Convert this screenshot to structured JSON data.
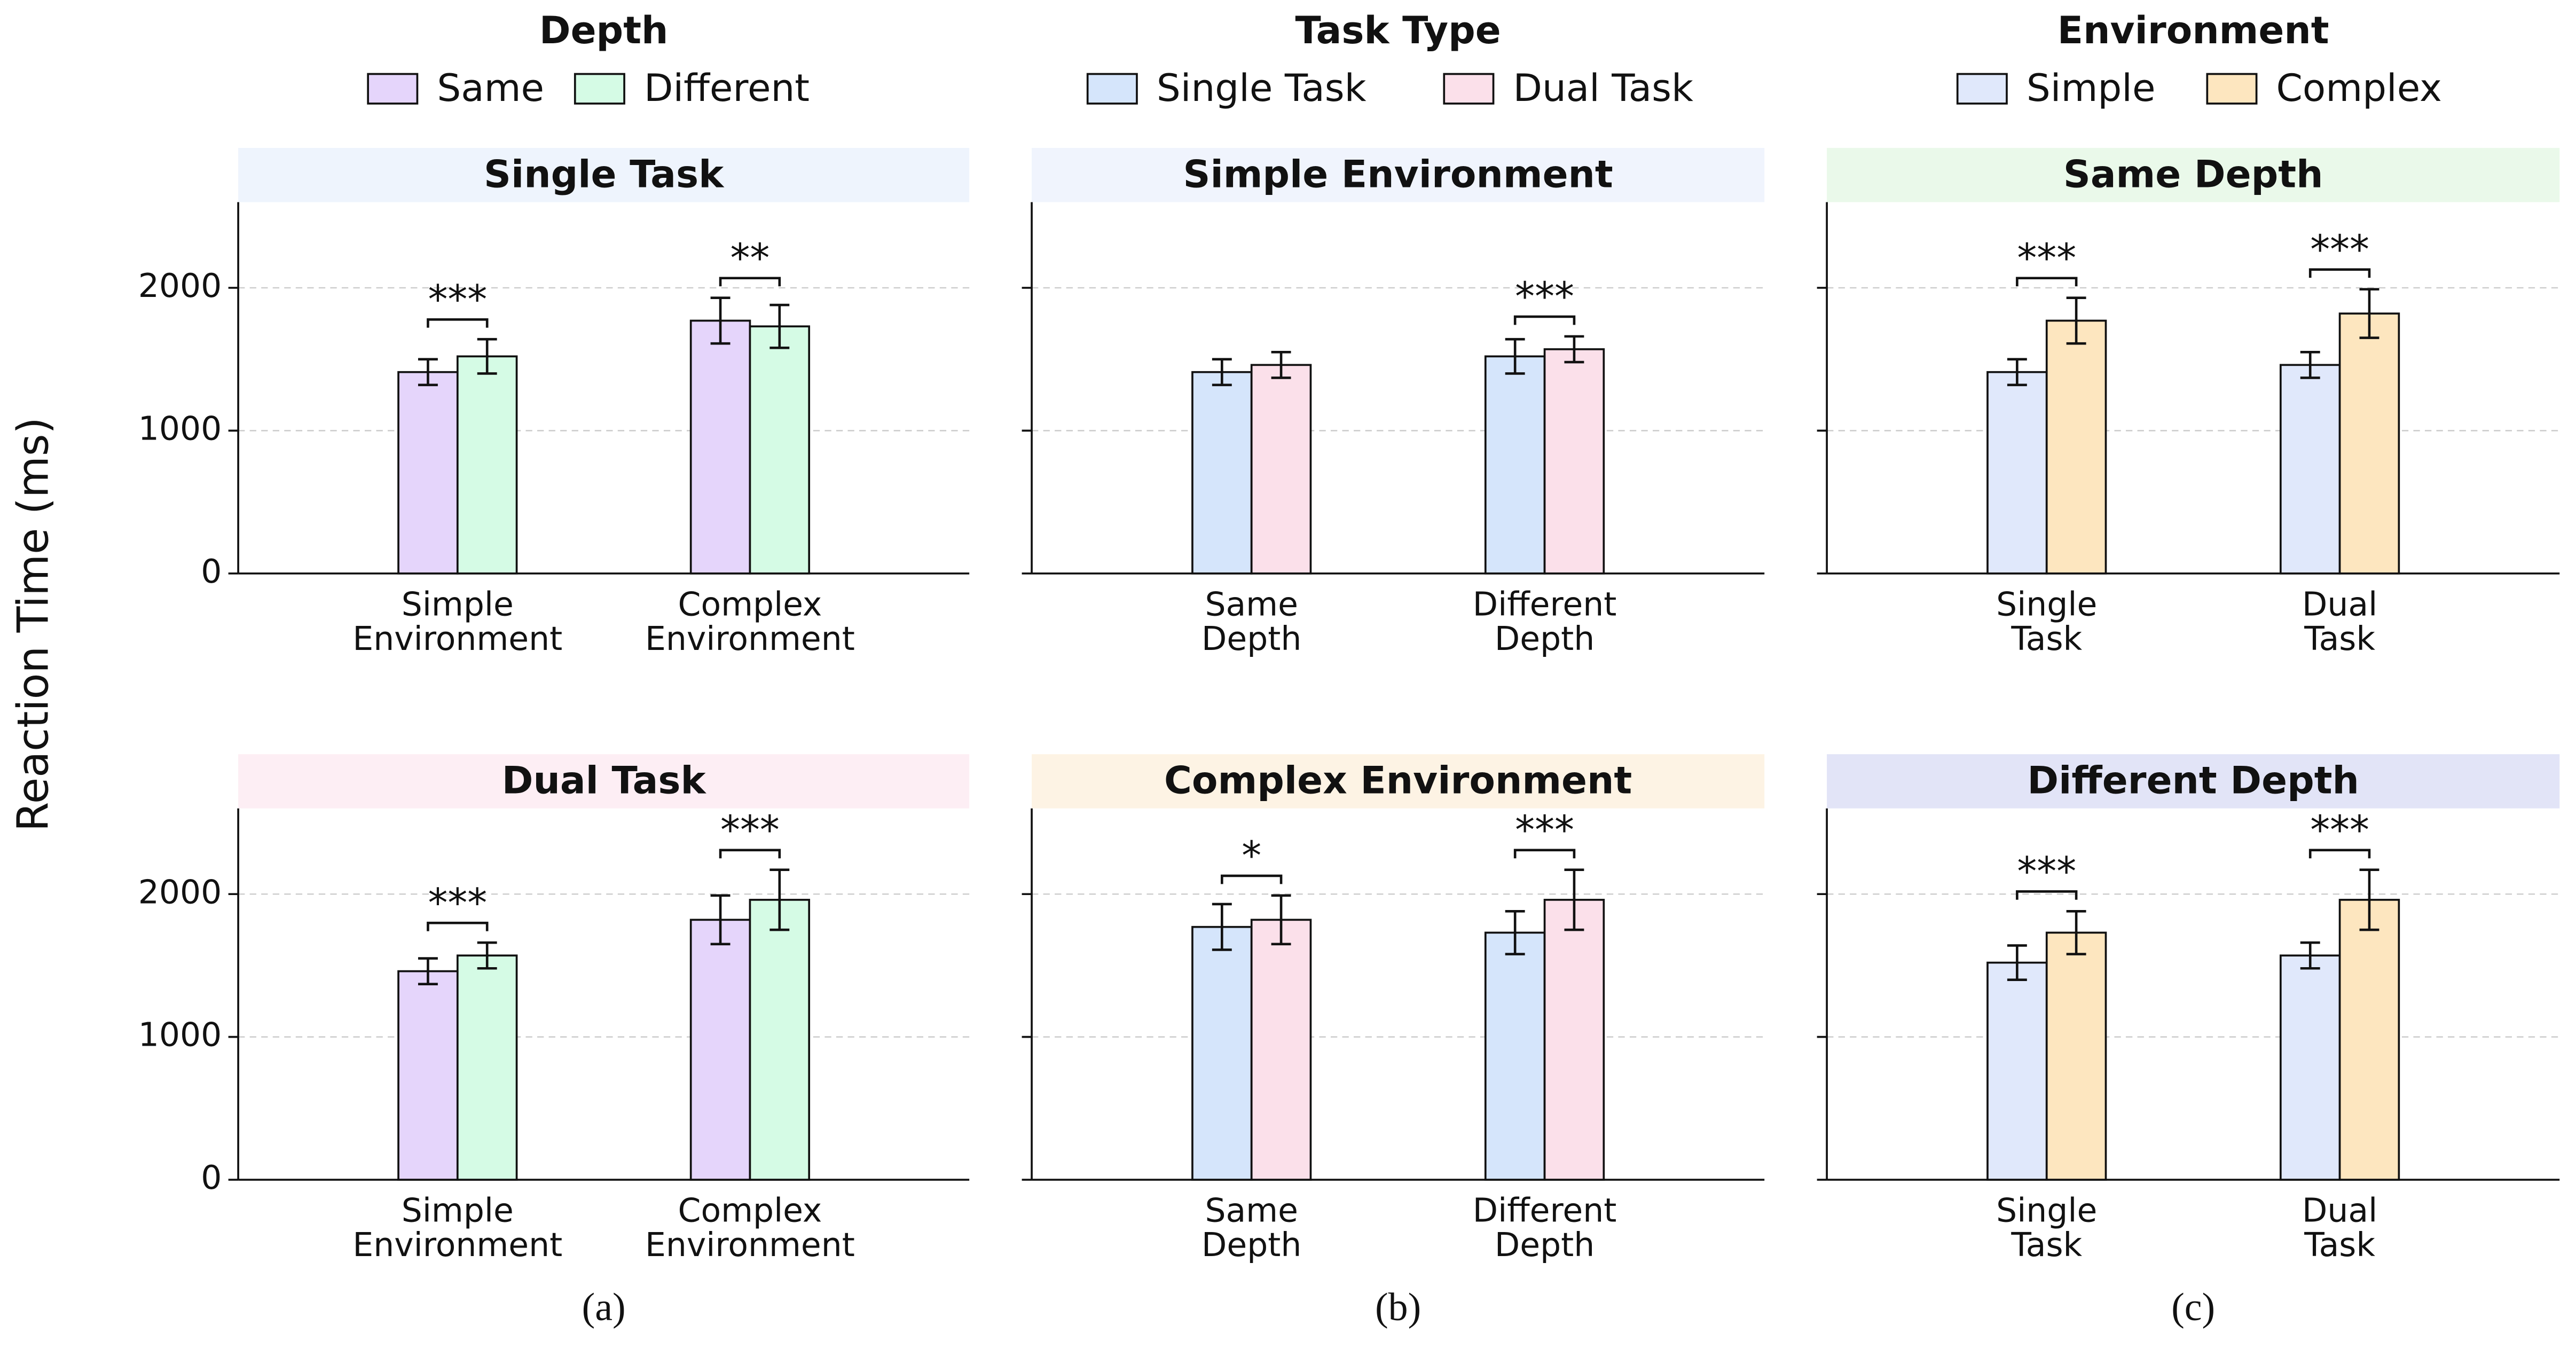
{
  "ylabel": "Reaction Time (ms)",
  "chart_data": [
    {
      "type": "bar",
      "legend_title": "Depth",
      "caption": "(a)",
      "legend": [
        {
          "name": "Same",
          "color": "#e5d5fb"
        },
        {
          "name": "Different",
          "color": "#d5fbe5"
        }
      ],
      "panels": [
        {
          "title": "Single Task",
          "title_color": "#eef4fd",
          "categories": [
            "Simple\nEnvironment",
            "Complex\nEnvironment"
          ],
          "ylim": [
            0,
            2600
          ],
          "yticks": [
            0,
            1000,
            2000
          ],
          "grid": true,
          "series": [
            {
              "values": [
                1410,
                1770
              ],
              "errors": [
                90,
                160
              ]
            },
            {
              "values": [
                1520,
                1730
              ],
              "errors": [
                120,
                150
              ]
            }
          ],
          "significance": [
            "***",
            "**"
          ]
        },
        {
          "title": "Dual Task",
          "title_color": "#fdeef4",
          "categories": [
            "Simple\nEnvironment",
            "Complex\nEnvironment"
          ],
          "ylim": [
            0,
            2600
          ],
          "yticks": [
            0,
            1000,
            2000
          ],
          "grid": true,
          "series": [
            {
              "values": [
                1460,
                1820
              ],
              "errors": [
                90,
                170
              ]
            },
            {
              "values": [
                1570,
                1960
              ],
              "errors": [
                90,
                210
              ]
            }
          ],
          "significance": [
            "***",
            "***"
          ]
        }
      ]
    },
    {
      "type": "bar",
      "legend_title": "Task Type",
      "caption": "(b)",
      "legend": [
        {
          "name": "Single Task",
          "color": "#d5e5fb"
        },
        {
          "name": "Dual Task",
          "color": "#fbe0ea"
        }
      ],
      "panels": [
        {
          "title": "Simple Environment",
          "title_color": "#f0f4fd",
          "categories": [
            "Same\nDepth",
            "Different\nDepth"
          ],
          "ylim": [
            0,
            2600
          ],
          "yticks": [
            0,
            1000,
            2000
          ],
          "grid": true,
          "series": [
            {
              "values": [
                1410,
                1520
              ],
              "errors": [
                90,
                120
              ]
            },
            {
              "values": [
                1460,
                1570
              ],
              "errors": [
                90,
                90
              ]
            }
          ],
          "significance": [
            null,
            "***"
          ]
        },
        {
          "title": "Complex Environment",
          "title_color": "#fdf3e4",
          "categories": [
            "Same\nDepth",
            "Different\nDepth"
          ],
          "ylim": [
            0,
            2600
          ],
          "yticks": [
            0,
            1000,
            2000
          ],
          "grid": true,
          "series": [
            {
              "values": [
                1770,
                1730
              ],
              "errors": [
                160,
                150
              ]
            },
            {
              "values": [
                1820,
                1960
              ],
              "errors": [
                170,
                210
              ]
            }
          ],
          "significance": [
            "*",
            "***"
          ]
        }
      ]
    },
    {
      "type": "bar",
      "legend_title": "Environment",
      "caption": "(c)",
      "legend": [
        {
          "name": "Simple",
          "color": "#e0e8fb"
        },
        {
          "name": "Complex",
          "color": "#fde6bf"
        }
      ],
      "panels": [
        {
          "title": "Same Depth",
          "title_color": "#eaf9ea",
          "categories": [
            "Single\nTask",
            "Dual\nTask"
          ],
          "ylim": [
            0,
            2600
          ],
          "yticks": [
            0,
            1000,
            2000
          ],
          "grid": true,
          "series": [
            {
              "values": [
                1410,
                1460
              ],
              "errors": [
                90,
                90
              ]
            },
            {
              "values": [
                1770,
                1820
              ],
              "errors": [
                160,
                170
              ]
            }
          ],
          "significance": [
            "***",
            "***"
          ]
        },
        {
          "title": "Different Depth",
          "title_color": "#e2e4f7",
          "categories": [
            "Single\nTask",
            "Dual\nTask"
          ],
          "ylim": [
            0,
            2600
          ],
          "yticks": [
            0,
            1000,
            2000
          ],
          "grid": true,
          "series": [
            {
              "values": [
                1520,
                1570
              ],
              "errors": [
                120,
                90
              ]
            },
            {
              "values": [
                1730,
                1960
              ],
              "errors": [
                150,
                210
              ]
            }
          ],
          "significance": [
            "***",
            "***"
          ]
        }
      ]
    }
  ]
}
